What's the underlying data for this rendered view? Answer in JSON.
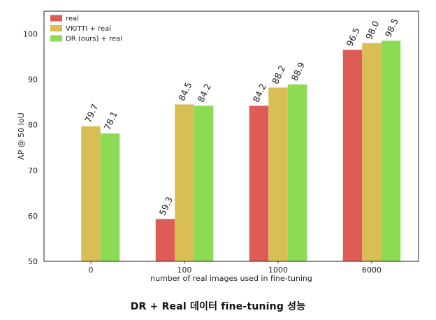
{
  "caption": "DR + Real 데이터 fine-tuning 성능",
  "chart_data": {
    "type": "bar",
    "title": "",
    "xlabel": "number of real images used in fine-tuning",
    "ylabel": "AP @ 50 IoU",
    "categories": [
      "0",
      "100",
      "1000",
      "6000"
    ],
    "ylim": [
      50,
      105
    ],
    "yticks": [
      50,
      60,
      70,
      80,
      90,
      100
    ],
    "grid": false,
    "legend_position": "top-left",
    "series": [
      {
        "name": "real",
        "color": "#de5c56",
        "values": [
          null,
          59.3,
          84.2,
          96.5
        ],
        "labels": [
          null,
          "59.3",
          "84.2",
          "96.5"
        ]
      },
      {
        "name": "VKITTI + real",
        "color": "#d9bd55",
        "values": [
          79.7,
          84.5,
          88.2,
          98.0
        ],
        "labels": [
          "79.7",
          "84.5",
          "88.2",
          "98.0"
        ]
      },
      {
        "name": "DR (ours) + real",
        "color": "#8cdb55",
        "values": [
          78.1,
          84.2,
          88.9,
          98.5
        ],
        "labels": [
          "78.1",
          "84.2",
          "88.9",
          "98.5"
        ]
      }
    ]
  }
}
